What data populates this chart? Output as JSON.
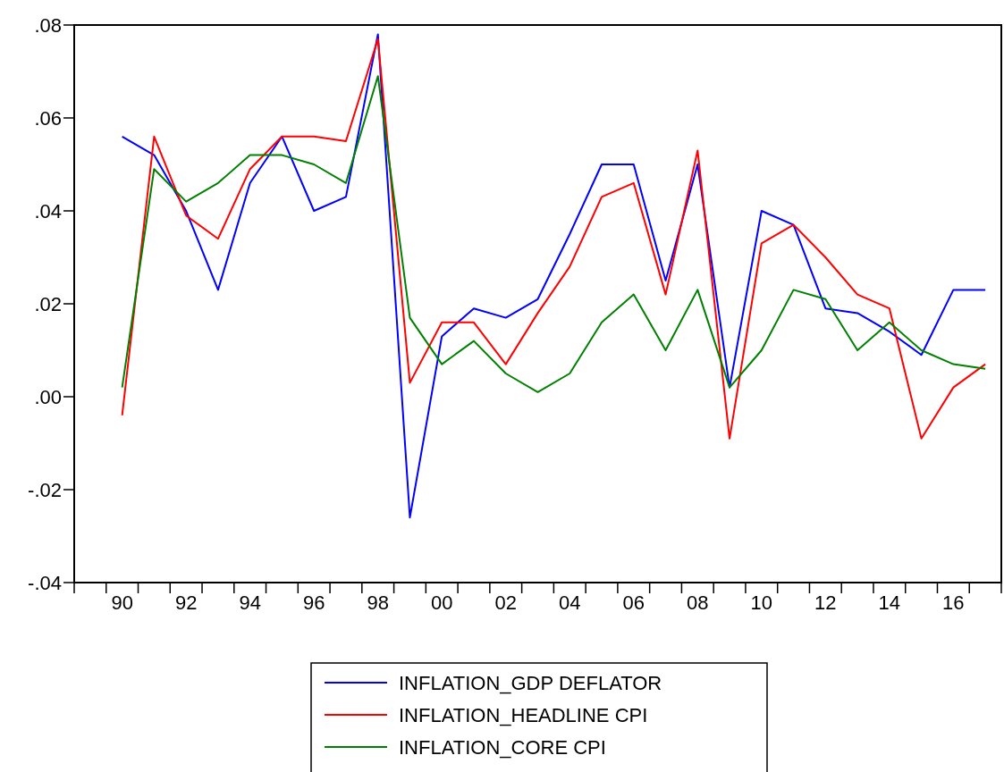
{
  "chart_data": {
    "type": "line",
    "categories": [
      null,
      "90",
      null,
      "92",
      null,
      "94",
      null,
      "96",
      null,
      "98",
      null,
      "00",
      null,
      "02",
      null,
      "04",
      null,
      "06",
      null,
      "08",
      null,
      "10",
      null,
      "12",
      null,
      "14",
      null,
      "16",
      null
    ],
    "series": [
      {
        "name": "INFLATION_GDP DEFLATOR",
        "color": "#0000ff",
        "values": [
          null,
          0.056,
          0.052,
          0.04,
          0.023,
          0.046,
          0.056,
          0.04,
          0.043,
          0.078,
          -0.026,
          0.013,
          0.019,
          0.017,
          0.021,
          0.035,
          0.05,
          0.05,
          0.025,
          0.05,
          0.002,
          0.04,
          0.037,
          0.019,
          0.018,
          0.014,
          0.009,
          0.023,
          0.023
        ]
      },
      {
        "name": "INFLATION_HEADLINE CPI",
        "color": "#ff0000",
        "values": [
          null,
          -0.004,
          0.056,
          0.039,
          0.034,
          0.049,
          0.056,
          0.056,
          0.055,
          0.077,
          0.003,
          0.016,
          0.016,
          0.007,
          0.018,
          0.028,
          0.043,
          0.046,
          0.022,
          0.053,
          -0.009,
          0.033,
          0.037,
          0.03,
          0.022,
          0.019,
          -0.009,
          0.002,
          0.007
        ]
      },
      {
        "name": "INFLATION_CORE CPI",
        "color": "#008000",
        "values": [
          null,
          0.002,
          0.049,
          0.042,
          0.046,
          0.052,
          0.052,
          0.05,
          0.046,
          0.069,
          0.017,
          0.007,
          0.012,
          0.005,
          0.001,
          0.005,
          0.016,
          0.022,
          0.01,
          0.023,
          0.002,
          0.01,
          0.023,
          0.021,
          0.01,
          0.016,
          0.01,
          0.007,
          0.006
        ]
      }
    ],
    "ylim": [
      -0.04,
      0.08
    ],
    "yticks": [
      {
        "value": -0.04,
        "label": "-.04"
      },
      {
        "value": -0.02,
        "label": "-.02"
      },
      {
        "value": 0,
        "label": ".00"
      },
      {
        "value": 0.02,
        "label": ".02"
      },
      {
        "value": 0.04,
        "label": ".04"
      },
      {
        "value": 0.06,
        "label": ".06"
      },
      {
        "value": 0.08,
        "label": ".08"
      }
    ],
    "grid": false,
    "legend": "bottom",
    "marker": "none",
    "line_style": "solid"
  }
}
